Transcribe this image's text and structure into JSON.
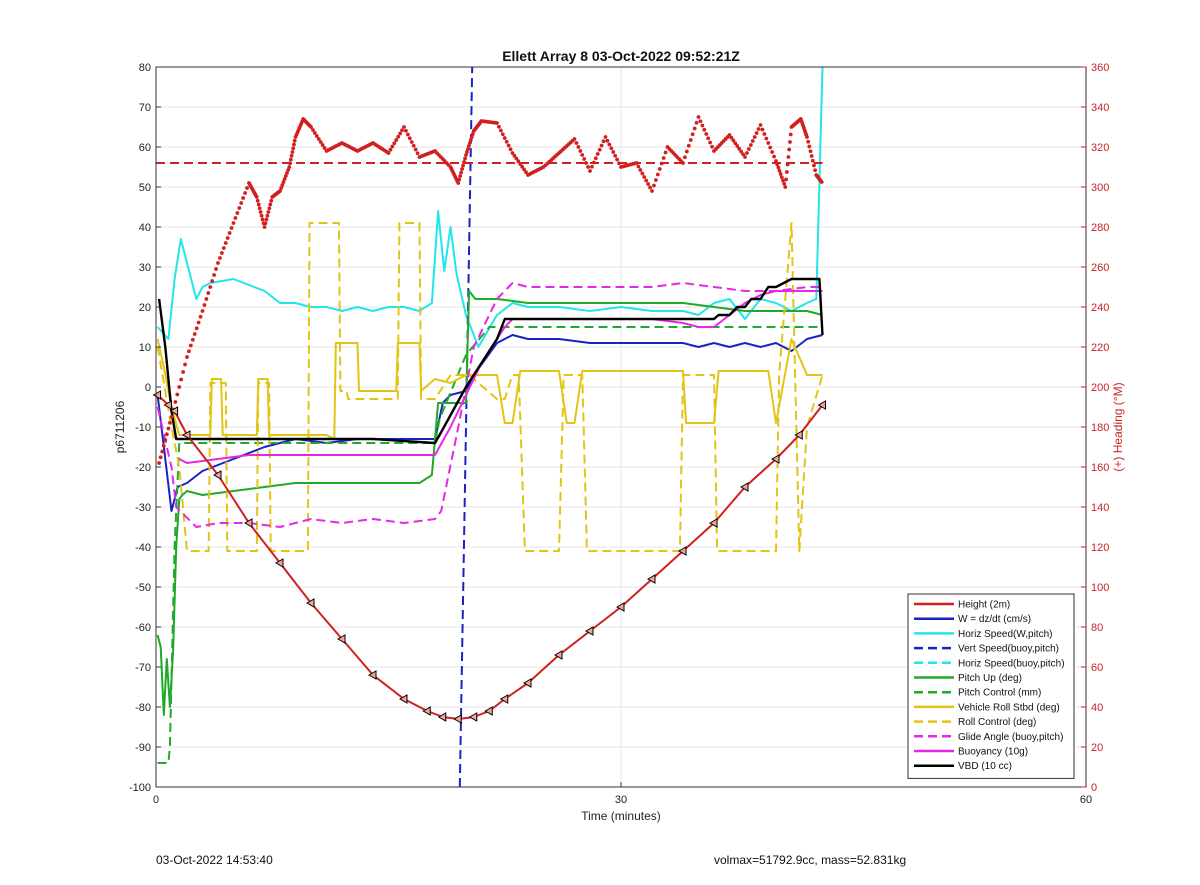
{
  "footer": {
    "left": "03-Oct-2022 14:53:40",
    "right": "volmax=51792.9cc, mass=52.831kg"
  },
  "chart_data": {
    "type": "line",
    "title": "Ellett Array 8 03-Oct-2022 09:52:21Z",
    "xlabel": "Time (minutes)",
    "ylabel": "p6711206",
    "y2label": "(+) Heading (°M)",
    "xlim": [
      0,
      60
    ],
    "ylim": [
      -100,
      80
    ],
    "y2lim": [
      0,
      360
    ],
    "xticks": [
      0,
      30,
      60
    ],
    "yticks": [
      -100,
      -90,
      -80,
      -70,
      -60,
      -50,
      -40,
      -30,
      -20,
      -10,
      0,
      10,
      20,
      30,
      40,
      50,
      60,
      70,
      80
    ],
    "y2ticks": [
      0,
      20,
      40,
      60,
      80,
      100,
      120,
      140,
      160,
      180,
      200,
      220,
      240,
      260,
      280,
      300,
      320,
      340,
      360
    ],
    "grid": true,
    "legend_position": "bottom-right",
    "colors": {
      "red": "#d21f1f",
      "blue": "#1a22c4",
      "cyan": "#22e6ea",
      "green": "#1faa28",
      "yellow": "#e2c415",
      "magenta": "#e628e6",
      "black": "#000000",
      "axis2": "#cc2222"
    },
    "series": [
      {
        "name": "Height (2m)",
        "color": "#d21f1f",
        "style": "solid",
        "markers": true,
        "x": [
          0.1,
          0.8,
          1.2,
          2,
          4,
          6,
          8,
          10,
          12,
          14,
          16,
          17.5,
          18.5,
          19.5,
          20.5,
          21.5,
          22.5,
          24,
          26,
          28,
          30,
          32,
          34,
          36,
          38,
          40,
          41.5,
          43
        ],
        "y": [
          -2,
          -4.5,
          -6,
          -12,
          -22,
          -34,
          -44,
          -54,
          -63,
          -72,
          -78,
          -81,
          -82.5,
          -83,
          -82.5,
          -81,
          -78,
          -74,
          -67,
          -61,
          -55,
          -48,
          -41,
          -34,
          -25,
          -18,
          -12,
          -4.5
        ]
      },
      {
        "name": "W = dz/dt (cm/s)",
        "color": "#1a22c4",
        "style": "solid",
        "x": [
          0.1,
          0.6,
          1.0,
          1.4,
          2.0,
          3,
          5,
          7,
          9,
          11,
          13,
          15,
          17,
          18,
          18.5,
          19,
          20,
          20.5,
          22,
          23,
          24,
          26,
          28,
          30,
          32,
          34,
          35,
          36,
          37,
          38,
          39,
          40,
          41,
          42,
          43
        ],
        "y": [
          -2,
          -18,
          -31,
          -25,
          -24,
          -21,
          -18,
          -15,
          -13,
          -14,
          -13,
          -13,
          -13,
          -13,
          -4,
          -2,
          -1,
          3,
          11,
          13,
          12,
          12,
          11,
          11,
          11,
          11,
          10,
          11,
          10,
          11,
          10,
          11,
          9,
          12,
          13
        ]
      },
      {
        "name": "Horiz Speed(W,pitch)",
        "color": "#22e6ea",
        "style": "solid",
        "x": [
          0.1,
          0.8,
          1.2,
          1.6,
          2.2,
          2.6,
          3,
          3.5,
          5,
          7,
          8,
          9,
          10,
          11,
          12,
          13,
          14,
          15,
          16,
          17,
          17.8,
          18.2,
          18.6,
          19,
          19.4,
          20,
          20.8,
          22,
          23,
          24,
          26,
          28,
          30,
          32,
          34,
          35,
          36,
          37,
          38,
          39,
          40,
          41,
          42,
          42.6,
          43
        ],
        "y": [
          15,
          12,
          27,
          37,
          28,
          22,
          25,
          26,
          27,
          24,
          21,
          21,
          20,
          20,
          19,
          20,
          19,
          20,
          20,
          19,
          21,
          44,
          29,
          40,
          28,
          18,
          10,
          18,
          21,
          20,
          20,
          19,
          20,
          19,
          19,
          18,
          21,
          22,
          17,
          22,
          21,
          19,
          21,
          22,
          80
        ]
      },
      {
        "name": "Vert Speed(buoy,pitch)",
        "color": "#1a22c4",
        "style": "dashed",
        "x": [
          19.6,
          20.4
        ],
        "y": [
          -100,
          80
        ]
      },
      {
        "name": "Horiz Speed(buoy,pitch)",
        "color": "#22e6ea",
        "style": "dashed",
        "x": [],
        "y": []
      },
      {
        "name": "Pitch Up (deg)",
        "color": "#1faa28",
        "style": "solid",
        "x": [
          0.1,
          0.3,
          0.5,
          0.7,
          0.9,
          1.1,
          1.3,
          1.5,
          1.7,
          2.0,
          3,
          5,
          7,
          9,
          11,
          13,
          15,
          17,
          17.8,
          18.2,
          20,
          20.2,
          20.6,
          22,
          24,
          26,
          28,
          30,
          32,
          34,
          36,
          38,
          40,
          42,
          43
        ],
        "y": [
          -62,
          -65,
          -82,
          -68,
          -80,
          -66,
          -40,
          -28,
          -27,
          -26,
          -27,
          -26,
          -25,
          -24,
          -24,
          -24,
          -24,
          -24,
          -22,
          -4,
          -4,
          24,
          22,
          22,
          21,
          21,
          21,
          21,
          21,
          21,
          20,
          19,
          19,
          19,
          18
        ]
      },
      {
        "name": "Pitch Control (mm)",
        "color": "#1faa28",
        "style": "dashed",
        "x": [
          0.1,
          0.8,
          0.9,
          1.2,
          1.5,
          3,
          6,
          10,
          14,
          18,
          18.3,
          20,
          21.5,
          23,
          26,
          30,
          34,
          38,
          42,
          43
        ],
        "y": [
          -94,
          -94,
          -90,
          -40,
          -14,
          -14,
          -14,
          -14,
          -14,
          -14,
          -8,
          8,
          15,
          15,
          15,
          15,
          15,
          15,
          15,
          15
        ]
      },
      {
        "name": "Vehicle Roll Stbd (deg)",
        "color": "#e2c415",
        "style": "solid",
        "x": [
          0.1,
          0.5,
          1,
          1.5,
          2,
          3,
          3.5,
          3.6,
          4.2,
          4.3,
          5,
          6,
          6.5,
          6.6,
          7.2,
          7.3,
          9,
          11,
          11.5,
          11.6,
          13,
          13.1,
          15,
          15.5,
          15.6,
          17,
          17.1,
          18,
          19,
          20,
          22,
          22.5,
          23,
          23.5,
          24,
          26,
          26.5,
          27,
          27.5,
          28,
          30,
          34,
          34.2,
          36,
          36.3,
          38,
          39.5,
          40,
          41,
          42,
          43
        ],
        "y": [
          12,
          5,
          -5,
          -12,
          -12,
          -12,
          -12,
          2,
          2,
          -12,
          -12,
          -12,
          -12,
          2,
          2,
          -12,
          -12,
          -12,
          -13,
          11,
          11,
          -1,
          -1,
          -1,
          11,
          11,
          -1,
          2,
          1,
          3,
          3,
          -9,
          -9,
          4,
          4,
          4,
          -9,
          -9,
          4,
          4,
          4,
          4,
          -9,
          -9,
          4,
          4,
          4,
          -9,
          12,
          3,
          3
        ]
      },
      {
        "name": "Roll Control (deg)",
        "color": "#e2c415",
        "style": "dashed",
        "x": [
          0.1,
          1,
          1.5,
          2,
          3.4,
          3.5,
          4.5,
          4.6,
          6,
          6.5,
          6.6,
          7.3,
          7.4,
          9.8,
          9.9,
          11.8,
          11.9,
          12.3,
          12.4,
          15.6,
          15.7,
          17,
          17.1,
          18,
          19,
          20.2,
          22,
          22.5,
          23,
          23.4,
          23.8,
          26,
          26.3,
          27.5,
          27.8,
          30,
          33.8,
          34,
          36,
          36.2,
          38,
          40,
          40.2,
          41,
          41.5,
          42,
          43
        ],
        "y": [
          10,
          -10,
          -20,
          -41,
          -41,
          1,
          1,
          -41,
          -41,
          -41,
          1,
          1,
          -41,
          -41,
          41,
          41,
          -1,
          -1,
          -3,
          -3,
          41,
          41,
          -3,
          -3,
          3,
          3,
          -3,
          -3,
          3,
          3,
          -41,
          -41,
          3,
          3,
          -41,
          -41,
          -41,
          3,
          3,
          -41,
          -41,
          -41,
          3,
          41,
          -41,
          -10,
          3
        ]
      },
      {
        "name": "Glide Angle (buoy,pitch)",
        "color": "#e628e6",
        "style": "dashed",
        "x": [
          0.1,
          1,
          1.3,
          2.6,
          4,
          6,
          8,
          10,
          12,
          14,
          16,
          18,
          18.4,
          19.5,
          20.5,
          22,
          23,
          24,
          26,
          28,
          30,
          32,
          34,
          36,
          38,
          40,
          42,
          43
        ],
        "y": [
          -5,
          -20,
          -30,
          -35,
          -34,
          -34,
          -35,
          -33,
          -34,
          -33,
          -34,
          -33,
          -31,
          -10,
          10,
          22,
          26,
          25,
          25,
          25,
          25,
          25,
          26,
          25,
          24,
          24,
          25,
          25
        ]
      },
      {
        "name": "Buoyancy (10g)",
        "color": "#e628e6",
        "style": "solid",
        "x": [
          1.5,
          2,
          4,
          6,
          8,
          10,
          12,
          14,
          16,
          18,
          19,
          20,
          21,
          22.5,
          23,
          26,
          30,
          32,
          34,
          35,
          36,
          37,
          38,
          39,
          40,
          41,
          42,
          43
        ],
        "y": [
          -18,
          -19,
          -18,
          -17,
          -17,
          -17,
          -17,
          -17,
          -17,
          -17,
          -10,
          -2,
          6,
          15,
          17,
          17,
          17,
          17,
          16,
          15,
          15,
          18,
          21,
          23,
          24,
          24,
          24,
          24
        ]
      },
      {
        "name": "VBD (10 cc)",
        "color": "#000000",
        "style": "solid",
        "x": [
          0.2,
          0.6,
          1,
          1.3,
          1.5,
          3,
          6,
          10,
          14,
          18,
          18.3,
          20,
          22,
          22.5,
          23,
          26,
          30,
          33,
          34,
          36,
          36.3,
          37,
          37.5,
          38,
          38.4,
          39,
          39.5,
          40,
          41,
          42,
          42.8,
          43
        ],
        "y": [
          22,
          10,
          -6,
          -13,
          -13,
          -13,
          -13,
          -13,
          -13,
          -14,
          -12,
          0,
          12,
          17,
          17,
          17,
          17,
          17,
          17,
          17,
          18,
          18,
          20,
          20,
          22,
          22,
          25,
          25,
          27,
          27,
          27,
          13
        ]
      },
      {
        "name": "Heading",
        "axis": "right",
        "color": "#d21f1f",
        "style": "dotted",
        "x": [
          0.2,
          1,
          2,
          3,
          4,
          5,
          6,
          6.5,
          7,
          7.5,
          8,
          8.6,
          9,
          9.5,
          10,
          11,
          12,
          13,
          14,
          15,
          16,
          17,
          18,
          19,
          19.5,
          20,
          20.5,
          21,
          22,
          23,
          24,
          25,
          26,
          27,
          28,
          29,
          30,
          31,
          32,
          33,
          34,
          35,
          36,
          37,
          38,
          39,
          40,
          40.6,
          41,
          41.6,
          42,
          42.6,
          43
        ],
        "y": [
          162,
          185,
          215,
          238,
          262,
          282,
          302,
          295,
          280,
          295,
          298,
          310,
          325,
          334,
          330,
          318,
          322,
          318,
          322,
          317,
          330,
          315,
          318,
          310,
          302,
          316,
          328,
          333,
          332,
          317,
          306,
          310,
          317,
          324,
          308,
          325,
          310,
          312,
          298,
          320,
          312,
          335,
          318,
          326,
          315,
          331,
          313,
          300,
          330,
          334,
          325,
          306,
          302
        ]
      },
      {
        "name": "Heading target",
        "axis": "right",
        "color": "#d21f1f",
        "style": "dashed",
        "x": [
          0,
          43
        ],
        "y": [
          312,
          312
        ]
      }
    ]
  }
}
